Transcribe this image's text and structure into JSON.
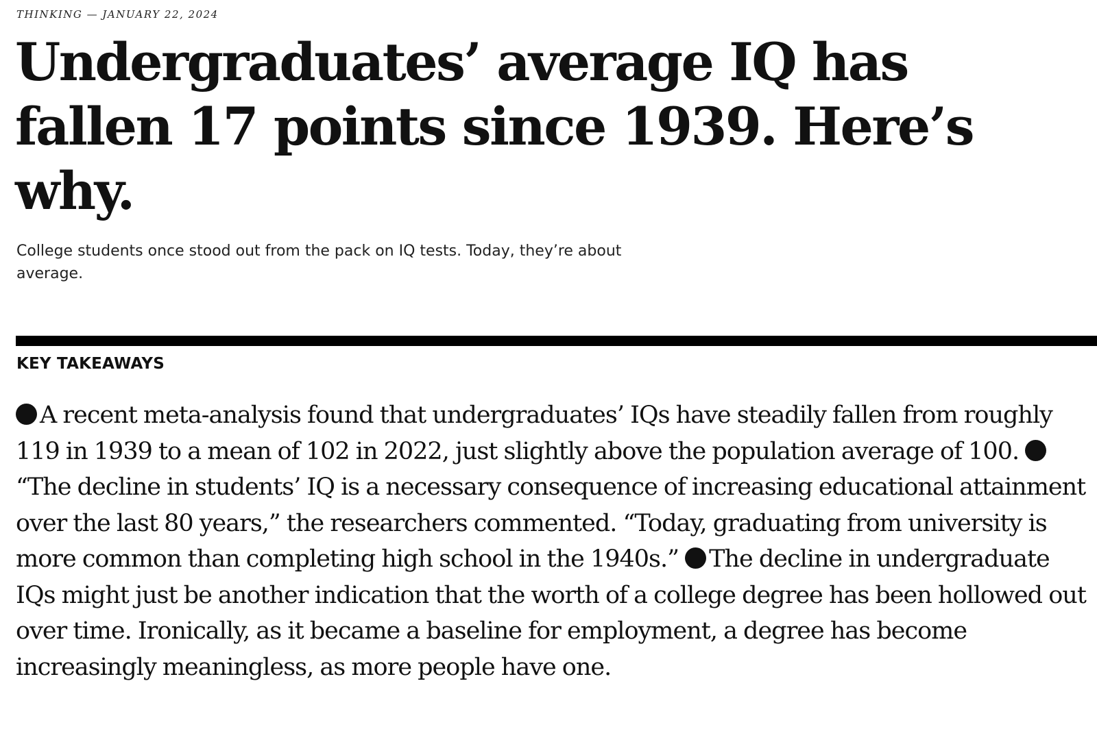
{
  "article": {
    "kicker": "THINKING — JANUARY 22, 2024",
    "headline": "Undergraduates’ average IQ has fallen 17 points since 1939. Here’s why.",
    "subtitle": "College students once stood out from the pack on IQ tests. Today, they’re about average."
  },
  "takeaways": {
    "label": "KEY TAKEAWAYS",
    "bullet_icon": "filled-circle",
    "items": [
      "A recent meta-analysis found that undergraduates’ IQs have steadily fallen from roughly 119 in 1939 to a mean of 102 in 2022, just slightly above the population average of 100.",
      "“The decline in students’ IQ is a necessary consequence of increasing educational attainment over the last 80 years,” the researchers commented. “Today, graduating from university is more common than completing high school in the 1940s.”",
      "The decline in undergraduate IQs might just be another indication that the worth of a college degree has been hollowed out over time. Ironically, as it became a baseline for employment, a degree has become increasingly meaningless, as more people have one."
    ]
  }
}
